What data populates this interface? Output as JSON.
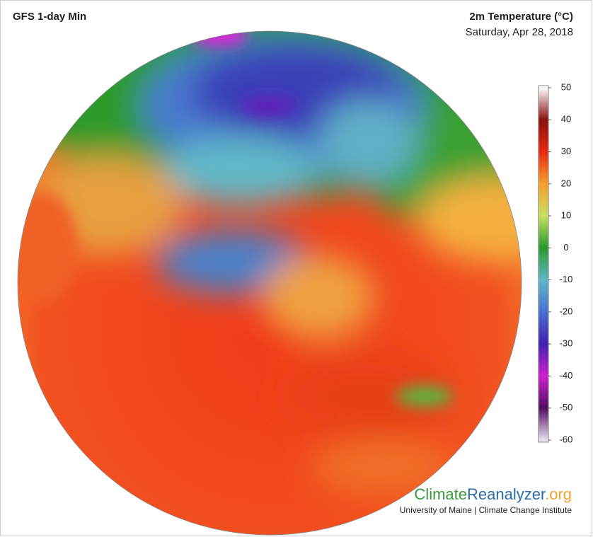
{
  "header": {
    "title": "GFS 1-day Min",
    "variable": "2m Temperature (°C)",
    "date": "Saturday, Apr 28, 2018"
  },
  "colorbar": {
    "lim": [
      -60,
      50
    ],
    "ticks": [
      50,
      40,
      30,
      20,
      10,
      0,
      -10,
      -20,
      -30,
      -40,
      -50,
      -60
    ],
    "colors": [
      "#ffffff",
      "#8a1010",
      "#e82a10",
      "#f7a030",
      "#c8e060",
      "#2a9a30",
      "#60b8c8",
      "#4a70d0",
      "#4020b0",
      "#d020d0",
      "#501060",
      "#e8e0ec"
    ]
  },
  "credit": {
    "brand": [
      "Climate",
      "Reanalyzer",
      ".org"
    ],
    "institution": "University of Maine | Climate Change Institute"
  }
}
